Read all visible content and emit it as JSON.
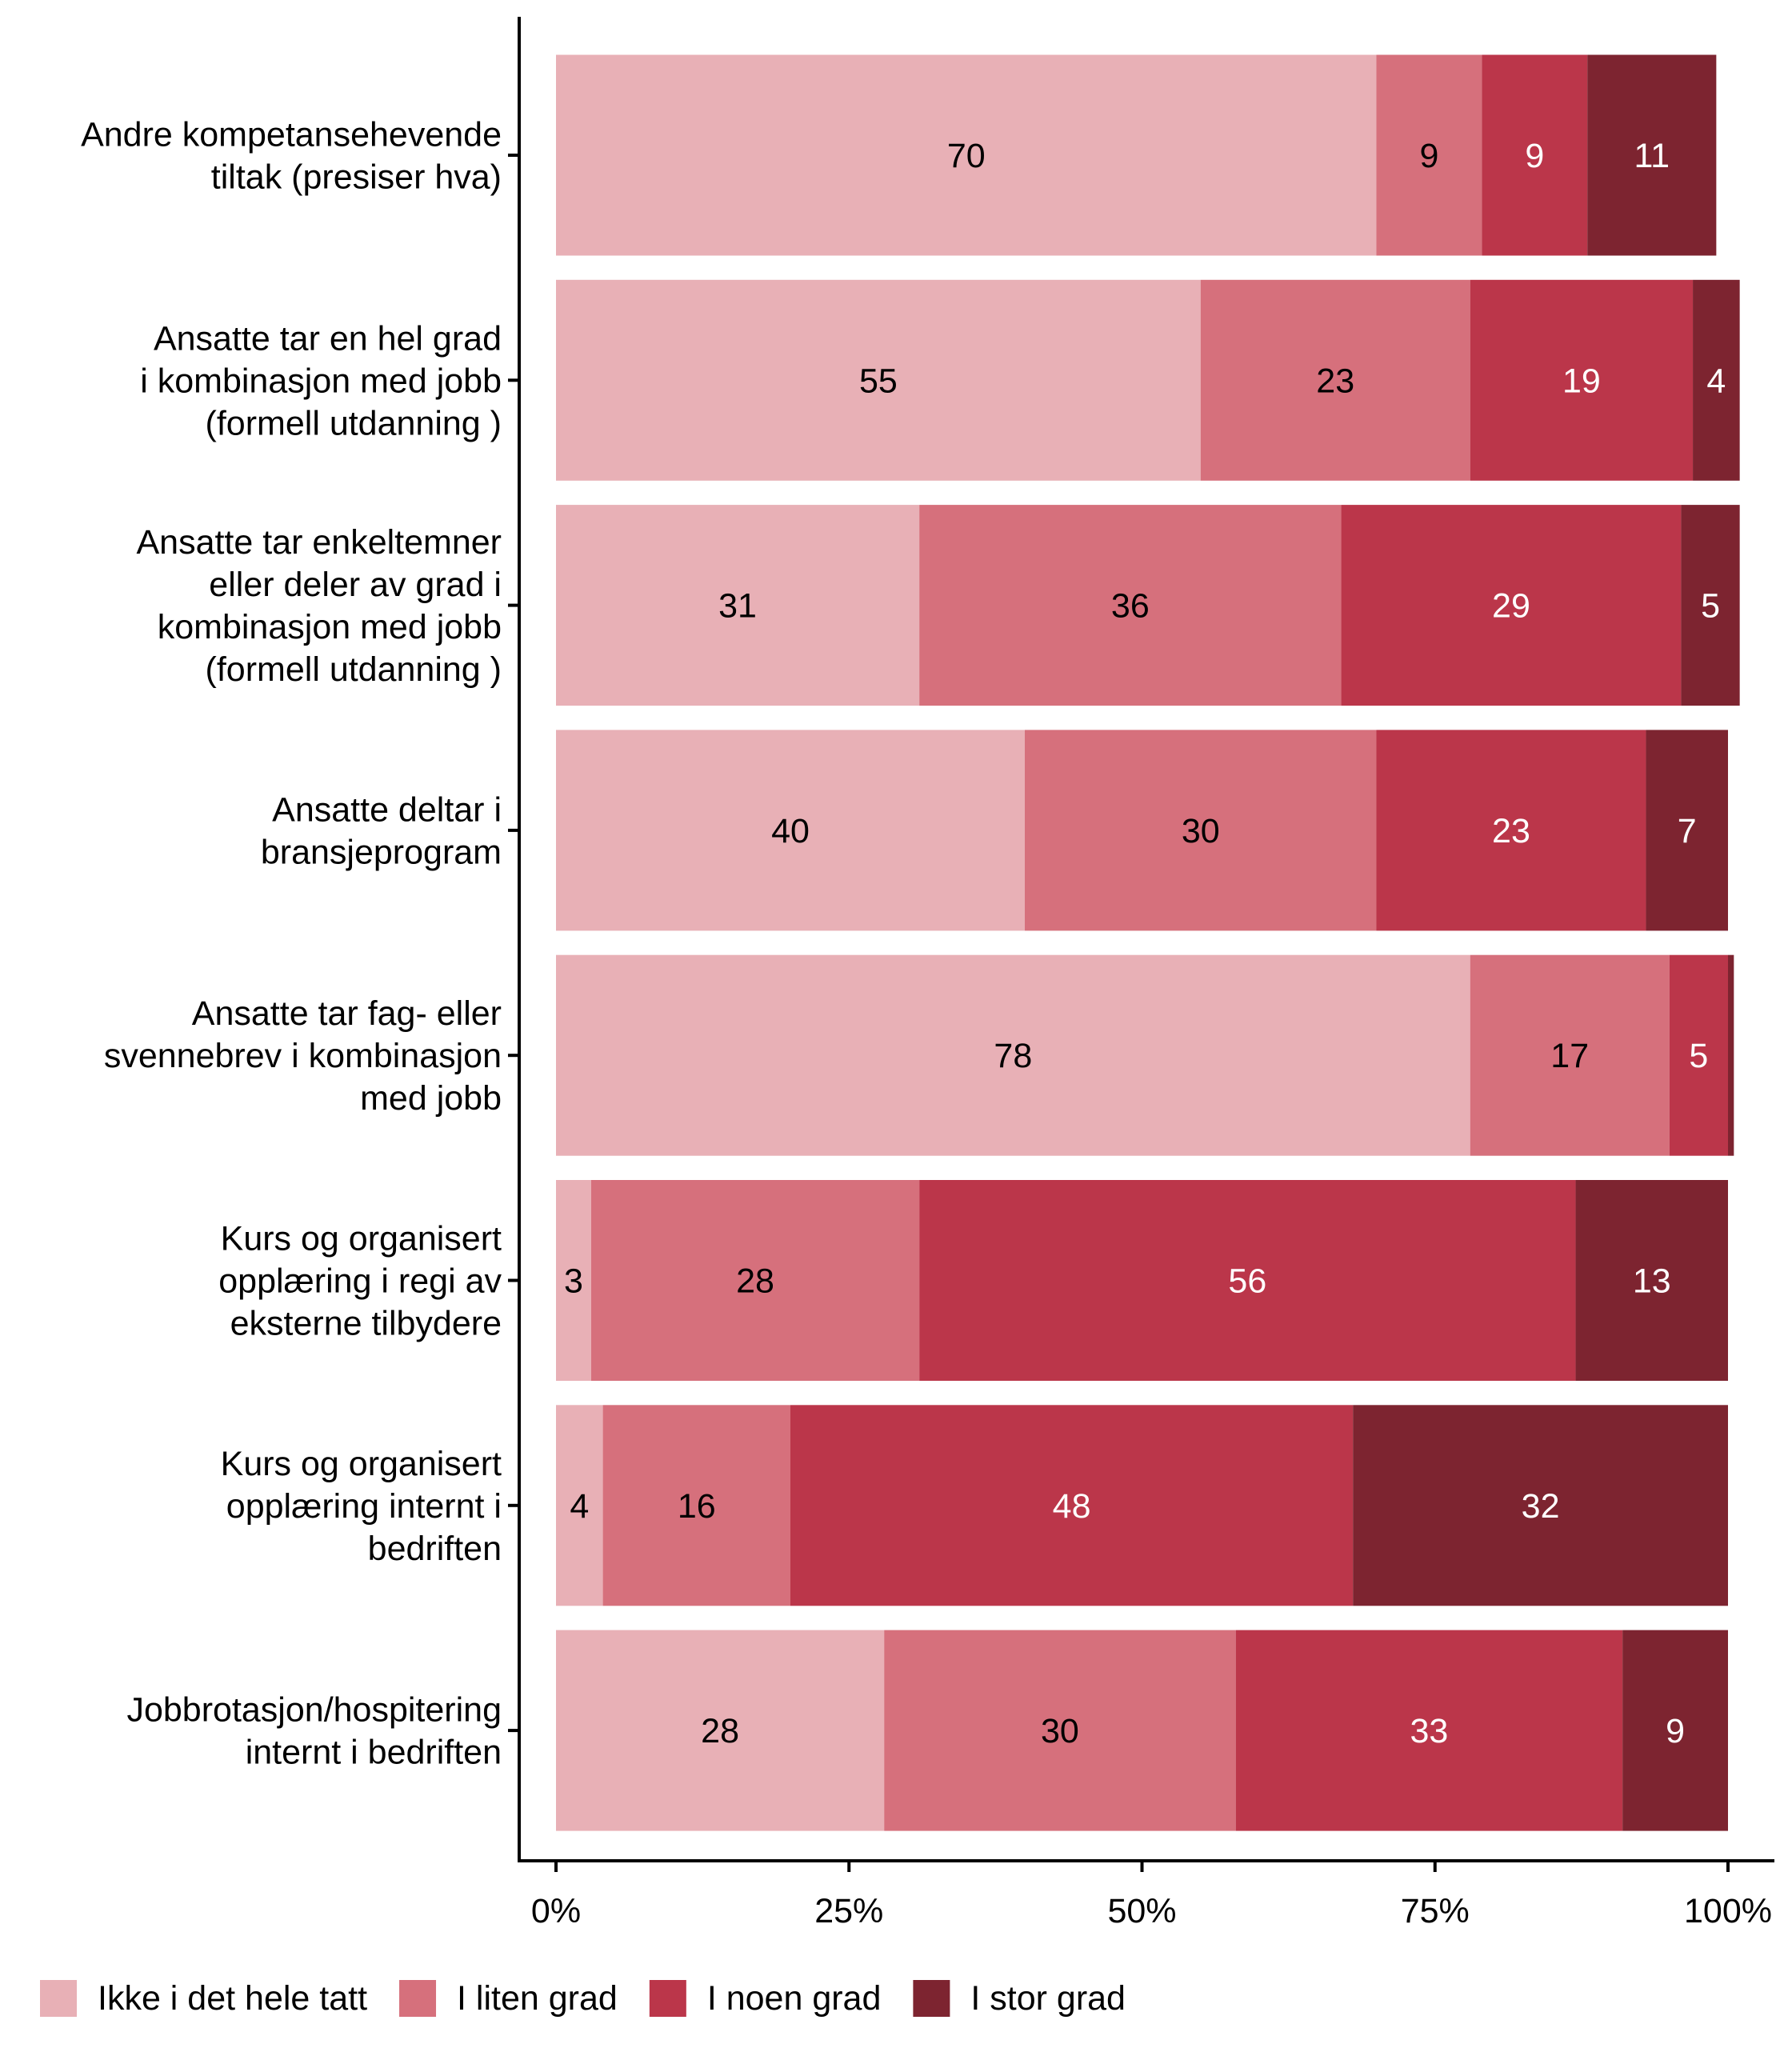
{
  "chart_data": {
    "type": "bar",
    "orientation": "horizontal",
    "stacked": true,
    "percent_stacked": true,
    "title": "",
    "xlabel": "",
    "ylabel": "",
    "xlim": [
      0,
      100
    ],
    "x_ticks": [
      0,
      25,
      50,
      75,
      100
    ],
    "x_tick_labels": [
      "0%",
      "25%",
      "50%",
      "75%",
      "100%"
    ],
    "grid": false,
    "legend_position": "bottom",
    "categories": [
      [
        "Andre kompetansehevende",
        "tiltak (presiser hva)"
      ],
      [
        "Ansatte tar en hel grad",
        "i kombinasjon med jobb",
        "(formell utdanning )"
      ],
      [
        "Ansatte tar enkeltemner",
        "eller deler av grad i",
        "kombinasjon med jobb",
        "(formell utdanning )"
      ],
      [
        "Ansatte deltar i",
        "bransjeprogram"
      ],
      [
        "Ansatte tar fag- eller",
        "svennebrev i kombinasjon",
        "med jobb"
      ],
      [
        "Kurs og organisert",
        "opplæring i regi av",
        "eksterne tilbydere"
      ],
      [
        "Kurs og organisert",
        "opplæring internt i",
        "bedriften"
      ],
      [
        "Jobbrotasjon/hospitering",
        "internt i bedriften"
      ]
    ],
    "series": [
      {
        "name": "Ikke i det hele tatt",
        "color": "#e8b0b6",
        "label_color": "#000000",
        "values": [
          70,
          55,
          31,
          40,
          78,
          3,
          4,
          28
        ],
        "labels": [
          "70",
          "55",
          "31",
          "40",
          "78",
          "3",
          "4",
          "28"
        ]
      },
      {
        "name": "I liten grad",
        "color": "#d6707c",
        "label_color": "#000000",
        "values": [
          9,
          23,
          36,
          30,
          17,
          28,
          16,
          30
        ],
        "labels": [
          "9",
          "23",
          "36",
          "30",
          "17",
          "28",
          "16",
          "30"
        ]
      },
      {
        "name": "I noen grad",
        "color": "#bb364a",
        "label_color": "#ffffff",
        "values": [
          9,
          19,
          29,
          23,
          5,
          56,
          48,
          33
        ],
        "labels": [
          "9",
          "19",
          "29",
          "23",
          "5",
          "56",
          "48",
          "33"
        ]
      },
      {
        "name": "I stor grad",
        "color": "#7d2430",
        "label_color": "#ffffff",
        "values": [
          11,
          4,
          5,
          7,
          0.5,
          13,
          32,
          9
        ],
        "labels": [
          "11",
          "4",
          "5",
          "7",
          "",
          "13",
          "32",
          "9"
        ]
      }
    ]
  }
}
